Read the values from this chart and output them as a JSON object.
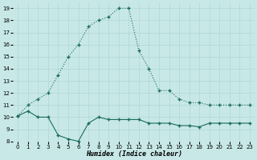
{
  "bg_color": "#c8e8e8",
  "line_color": "#1a6b5a",
  "xlim": [
    -0.5,
    23.5
  ],
  "ylim": [
    8,
    19.5
  ],
  "yticks": [
    8,
    9,
    10,
    11,
    12,
    13,
    14,
    15,
    16,
    17,
    18,
    19
  ],
  "xticks": [
    0,
    1,
    2,
    3,
    4,
    5,
    6,
    7,
    8,
    9,
    10,
    11,
    12,
    13,
    14,
    15,
    16,
    17,
    18,
    19,
    20,
    21,
    22,
    23
  ],
  "xlabel": "Humidex (Indice chaleur)",
  "curve_x": [
    0,
    1,
    2,
    3,
    4,
    5,
    6,
    7,
    8,
    9,
    10,
    11,
    12,
    13,
    14,
    15,
    16,
    17,
    18,
    19,
    20,
    21,
    22,
    23
  ],
  "curve_y": [
    10.1,
    11.0,
    11.5,
    12.0,
    13.5,
    15.0,
    16.0,
    17.5,
    18.0,
    18.3,
    19.0,
    19.0,
    15.5,
    14.0,
    12.2,
    12.2,
    11.5,
    11.2,
    11.2,
    11.0,
    11.0,
    11.0,
    11.0,
    11.0
  ],
  "flat_x": [
    0,
    1,
    2,
    3,
    4,
    5,
    6,
    7,
    8,
    9,
    10,
    11,
    12,
    13,
    14,
    15,
    16,
    17,
    18,
    19,
    20,
    21,
    22,
    23
  ],
  "flat_y": [
    10.1,
    10.5,
    10.0,
    10.0,
    8.5,
    8.2,
    8.0,
    9.5,
    10.0,
    9.8,
    9.8,
    9.8,
    9.8,
    9.5,
    9.5,
    9.5,
    9.3,
    9.3,
    9.2,
    9.5,
    9.5,
    9.5,
    9.5,
    9.5
  ]
}
